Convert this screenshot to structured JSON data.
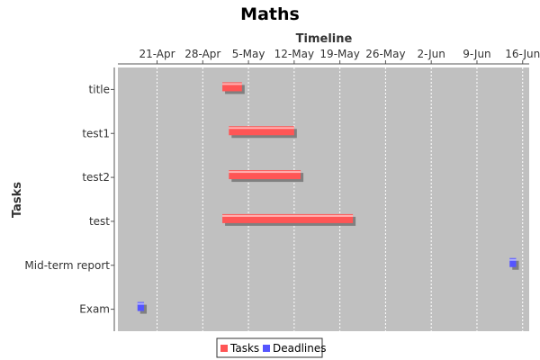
{
  "chart_data": {
    "type": "gantt",
    "title": "Maths",
    "xlabel": "Timeline",
    "ylabel": "Tasks",
    "x_axis_position": "top",
    "x_ticks": [
      "21-Apr",
      "28-Apr",
      "5-May",
      "12-May",
      "19-May",
      "26-May",
      "2-Jun",
      "9-Jun",
      "16-Jun"
    ],
    "xlim": [
      "2014-04-15",
      "2014-06-17"
    ],
    "grid": true,
    "categories": [
      "title",
      "test1",
      "test2",
      "test",
      "Mid-term report",
      "Exam"
    ],
    "series": [
      {
        "name": "Tasks",
        "color": "#ff5555",
        "bars": [
          {
            "task": "title",
            "start": "2014-05-01",
            "end": "2014-05-04"
          },
          {
            "task": "test1",
            "start": "2014-05-02",
            "end": "2014-05-12"
          },
          {
            "task": "test2",
            "start": "2014-05-02",
            "end": "2014-05-13"
          },
          {
            "task": "test",
            "start": "2014-05-01",
            "end": "2014-05-21"
          }
        ]
      },
      {
        "name": "Deadlines",
        "color": "#5555ff",
        "bars": [
          {
            "task": "Mid-term report",
            "start": "2014-06-14",
            "end": "2014-06-15"
          },
          {
            "task": "Exam",
            "start": "2014-04-18",
            "end": "2014-04-19"
          }
        ]
      }
    ],
    "legend": {
      "position": "bottom",
      "entries": [
        {
          "label": "Tasks",
          "color": "#ff5555"
        },
        {
          "label": "Deadlines",
          "color": "#5555ff"
        }
      ]
    },
    "plot_background": "#c0c0c0"
  }
}
